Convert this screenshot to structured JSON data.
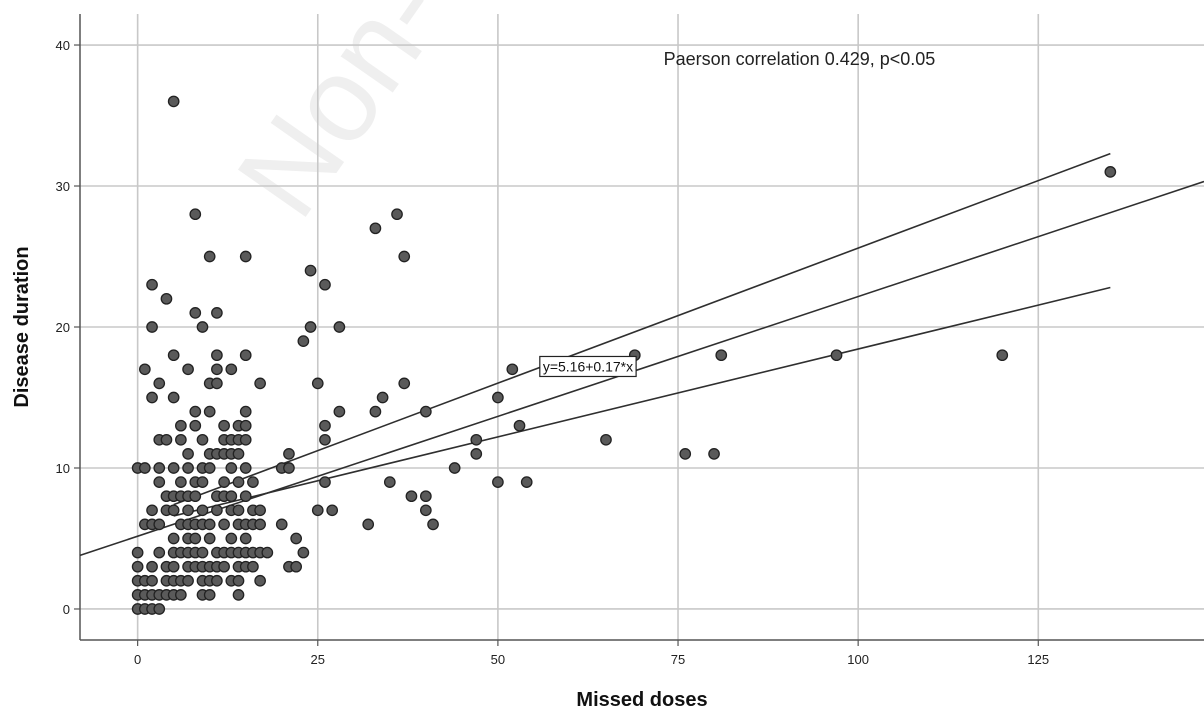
{
  "chart_data": {
    "type": "scatter",
    "title": "",
    "xlabel": "Missed doses",
    "ylabel": "Disease duration",
    "xlim": [
      -8,
      148
    ],
    "ylim": [
      -2.2,
      42.2
    ],
    "x_ticks": [
      0,
      25,
      50,
      75,
      100,
      125
    ],
    "y_ticks": [
      0,
      10,
      20,
      30,
      40
    ],
    "grid": true,
    "legend": "none",
    "watermark": "Non-com",
    "annotations": [
      {
        "text": "Paerson correlation 0.429, p<0.05",
        "x": 73,
        "y": 39
      }
    ],
    "fit": {
      "equation_label": "y=5.16+0.17*x",
      "intercept": 5.16,
      "slope": 0.17,
      "x_range": [
        -8,
        148
      ],
      "label_at": {
        "x": 62.5,
        "y": 17.2
      },
      "ci_upper": {
        "x_start": 5,
        "y_start": 7.4,
        "x_end": 135,
        "y_end": 32.3
      },
      "ci_lower": {
        "x_start": 5,
        "y_start": 6.6,
        "x_end": 135,
        "y_end": 22.8
      }
    },
    "colors": {
      "point_fill": "#5a5a5a",
      "point_stroke": "#222222",
      "line": "#2f2f2f",
      "grid": "#c8c8c8",
      "axis": "#555555"
    },
    "points": [
      [
        5,
        36
      ],
      [
        135,
        31
      ],
      [
        8,
        28
      ],
      [
        36,
        28
      ],
      [
        33,
        27
      ],
      [
        10,
        25
      ],
      [
        15,
        25
      ],
      [
        37,
        25
      ],
      [
        24,
        24
      ],
      [
        26,
        23
      ],
      [
        2,
        23
      ],
      [
        4,
        22
      ],
      [
        8,
        21
      ],
      [
        11,
        21
      ],
      [
        24,
        20
      ],
      [
        28,
        20
      ],
      [
        9,
        20
      ],
      [
        2,
        20
      ],
      [
        23,
        19
      ],
      [
        5,
        18
      ],
      [
        11,
        18
      ],
      [
        15,
        18
      ],
      [
        69,
        18
      ],
      [
        81,
        18
      ],
      [
        97,
        18
      ],
      [
        120,
        18
      ],
      [
        1,
        17
      ],
      [
        7,
        17
      ],
      [
        11,
        17
      ],
      [
        13,
        17
      ],
      [
        52,
        17
      ],
      [
        3,
        16
      ],
      [
        10,
        16
      ],
      [
        11,
        16
      ],
      [
        17,
        16
      ],
      [
        25,
        16
      ],
      [
        37,
        16
      ],
      [
        2,
        15
      ],
      [
        5,
        15
      ],
      [
        34,
        15
      ],
      [
        50,
        15
      ],
      [
        8,
        14
      ],
      [
        10,
        14
      ],
      [
        15,
        14
      ],
      [
        28,
        14
      ],
      [
        33,
        14
      ],
      [
        40,
        14
      ],
      [
        6,
        13
      ],
      [
        8,
        13
      ],
      [
        12,
        13
      ],
      [
        14,
        13
      ],
      [
        15,
        13
      ],
      [
        26,
        13
      ],
      [
        53,
        13
      ],
      [
        3,
        12
      ],
      [
        4,
        12
      ],
      [
        6,
        12
      ],
      [
        9,
        12
      ],
      [
        12,
        12
      ],
      [
        13,
        12
      ],
      [
        14,
        12
      ],
      [
        15,
        12
      ],
      [
        26,
        12
      ],
      [
        47,
        12
      ],
      [
        65,
        12
      ],
      [
        7,
        11
      ],
      [
        10,
        11
      ],
      [
        11,
        11
      ],
      [
        12,
        11
      ],
      [
        13,
        11
      ],
      [
        14,
        11
      ],
      [
        21,
        11
      ],
      [
        47,
        11
      ],
      [
        76,
        11
      ],
      [
        80,
        11
      ],
      [
        0,
        10
      ],
      [
        1,
        10
      ],
      [
        3,
        10
      ],
      [
        5,
        10
      ],
      [
        7,
        10
      ],
      [
        9,
        10
      ],
      [
        10,
        10
      ],
      [
        13,
        10
      ],
      [
        15,
        10
      ],
      [
        20,
        10
      ],
      [
        21,
        10
      ],
      [
        44,
        10
      ],
      [
        3,
        9
      ],
      [
        6,
        9
      ],
      [
        8,
        9
      ],
      [
        9,
        9
      ],
      [
        12,
        9
      ],
      [
        14,
        9
      ],
      [
        16,
        9
      ],
      [
        26,
        9
      ],
      [
        35,
        9
      ],
      [
        50,
        9
      ],
      [
        54,
        9
      ],
      [
        4,
        8
      ],
      [
        5,
        8
      ],
      [
        6,
        8
      ],
      [
        7,
        8
      ],
      [
        8,
        8
      ],
      [
        11,
        8
      ],
      [
        12,
        8
      ],
      [
        13,
        8
      ],
      [
        15,
        8
      ],
      [
        38,
        8
      ],
      [
        40,
        8
      ],
      [
        2,
        7
      ],
      [
        4,
        7
      ],
      [
        5,
        7
      ],
      [
        7,
        7
      ],
      [
        9,
        7
      ],
      [
        11,
        7
      ],
      [
        13,
        7
      ],
      [
        14,
        7
      ],
      [
        16,
        7
      ],
      [
        17,
        7
      ],
      [
        25,
        7
      ],
      [
        27,
        7
      ],
      [
        40,
        7
      ],
      [
        1,
        6
      ],
      [
        2,
        6
      ],
      [
        3,
        6
      ],
      [
        6,
        6
      ],
      [
        7,
        6
      ],
      [
        8,
        6
      ],
      [
        9,
        6
      ],
      [
        10,
        6
      ],
      [
        12,
        6
      ],
      [
        14,
        6
      ],
      [
        15,
        6
      ],
      [
        16,
        6
      ],
      [
        17,
        6
      ],
      [
        20,
        6
      ],
      [
        32,
        6
      ],
      [
        41,
        6
      ],
      [
        5,
        5
      ],
      [
        7,
        5
      ],
      [
        8,
        5
      ],
      [
        10,
        5
      ],
      [
        13,
        5
      ],
      [
        15,
        5
      ],
      [
        22,
        5
      ],
      [
        0,
        4
      ],
      [
        3,
        4
      ],
      [
        5,
        4
      ],
      [
        6,
        4
      ],
      [
        7,
        4
      ],
      [
        8,
        4
      ],
      [
        9,
        4
      ],
      [
        11,
        4
      ],
      [
        12,
        4
      ],
      [
        13,
        4
      ],
      [
        14,
        4
      ],
      [
        15,
        4
      ],
      [
        16,
        4
      ],
      [
        17,
        4
      ],
      [
        18,
        4
      ],
      [
        23,
        4
      ],
      [
        0,
        3
      ],
      [
        2,
        3
      ],
      [
        4,
        3
      ],
      [
        5,
        3
      ],
      [
        7,
        3
      ],
      [
        8,
        3
      ],
      [
        9,
        3
      ],
      [
        10,
        3
      ],
      [
        11,
        3
      ],
      [
        12,
        3
      ],
      [
        14,
        3
      ],
      [
        15,
        3
      ],
      [
        16,
        3
      ],
      [
        21,
        3
      ],
      [
        22,
        3
      ],
      [
        0,
        2
      ],
      [
        1,
        2
      ],
      [
        2,
        2
      ],
      [
        4,
        2
      ],
      [
        5,
        2
      ],
      [
        6,
        2
      ],
      [
        7,
        2
      ],
      [
        9,
        2
      ],
      [
        10,
        2
      ],
      [
        11,
        2
      ],
      [
        13,
        2
      ],
      [
        14,
        2
      ],
      [
        17,
        2
      ],
      [
        0,
        1
      ],
      [
        1,
        1
      ],
      [
        2,
        1
      ],
      [
        3,
        1
      ],
      [
        4,
        1
      ],
      [
        5,
        1
      ],
      [
        6,
        1
      ],
      [
        9,
        1
      ],
      [
        10,
        1
      ],
      [
        14,
        1
      ],
      [
        0,
        0
      ],
      [
        1,
        0
      ],
      [
        2,
        0
      ],
      [
        3,
        0
      ]
    ]
  }
}
